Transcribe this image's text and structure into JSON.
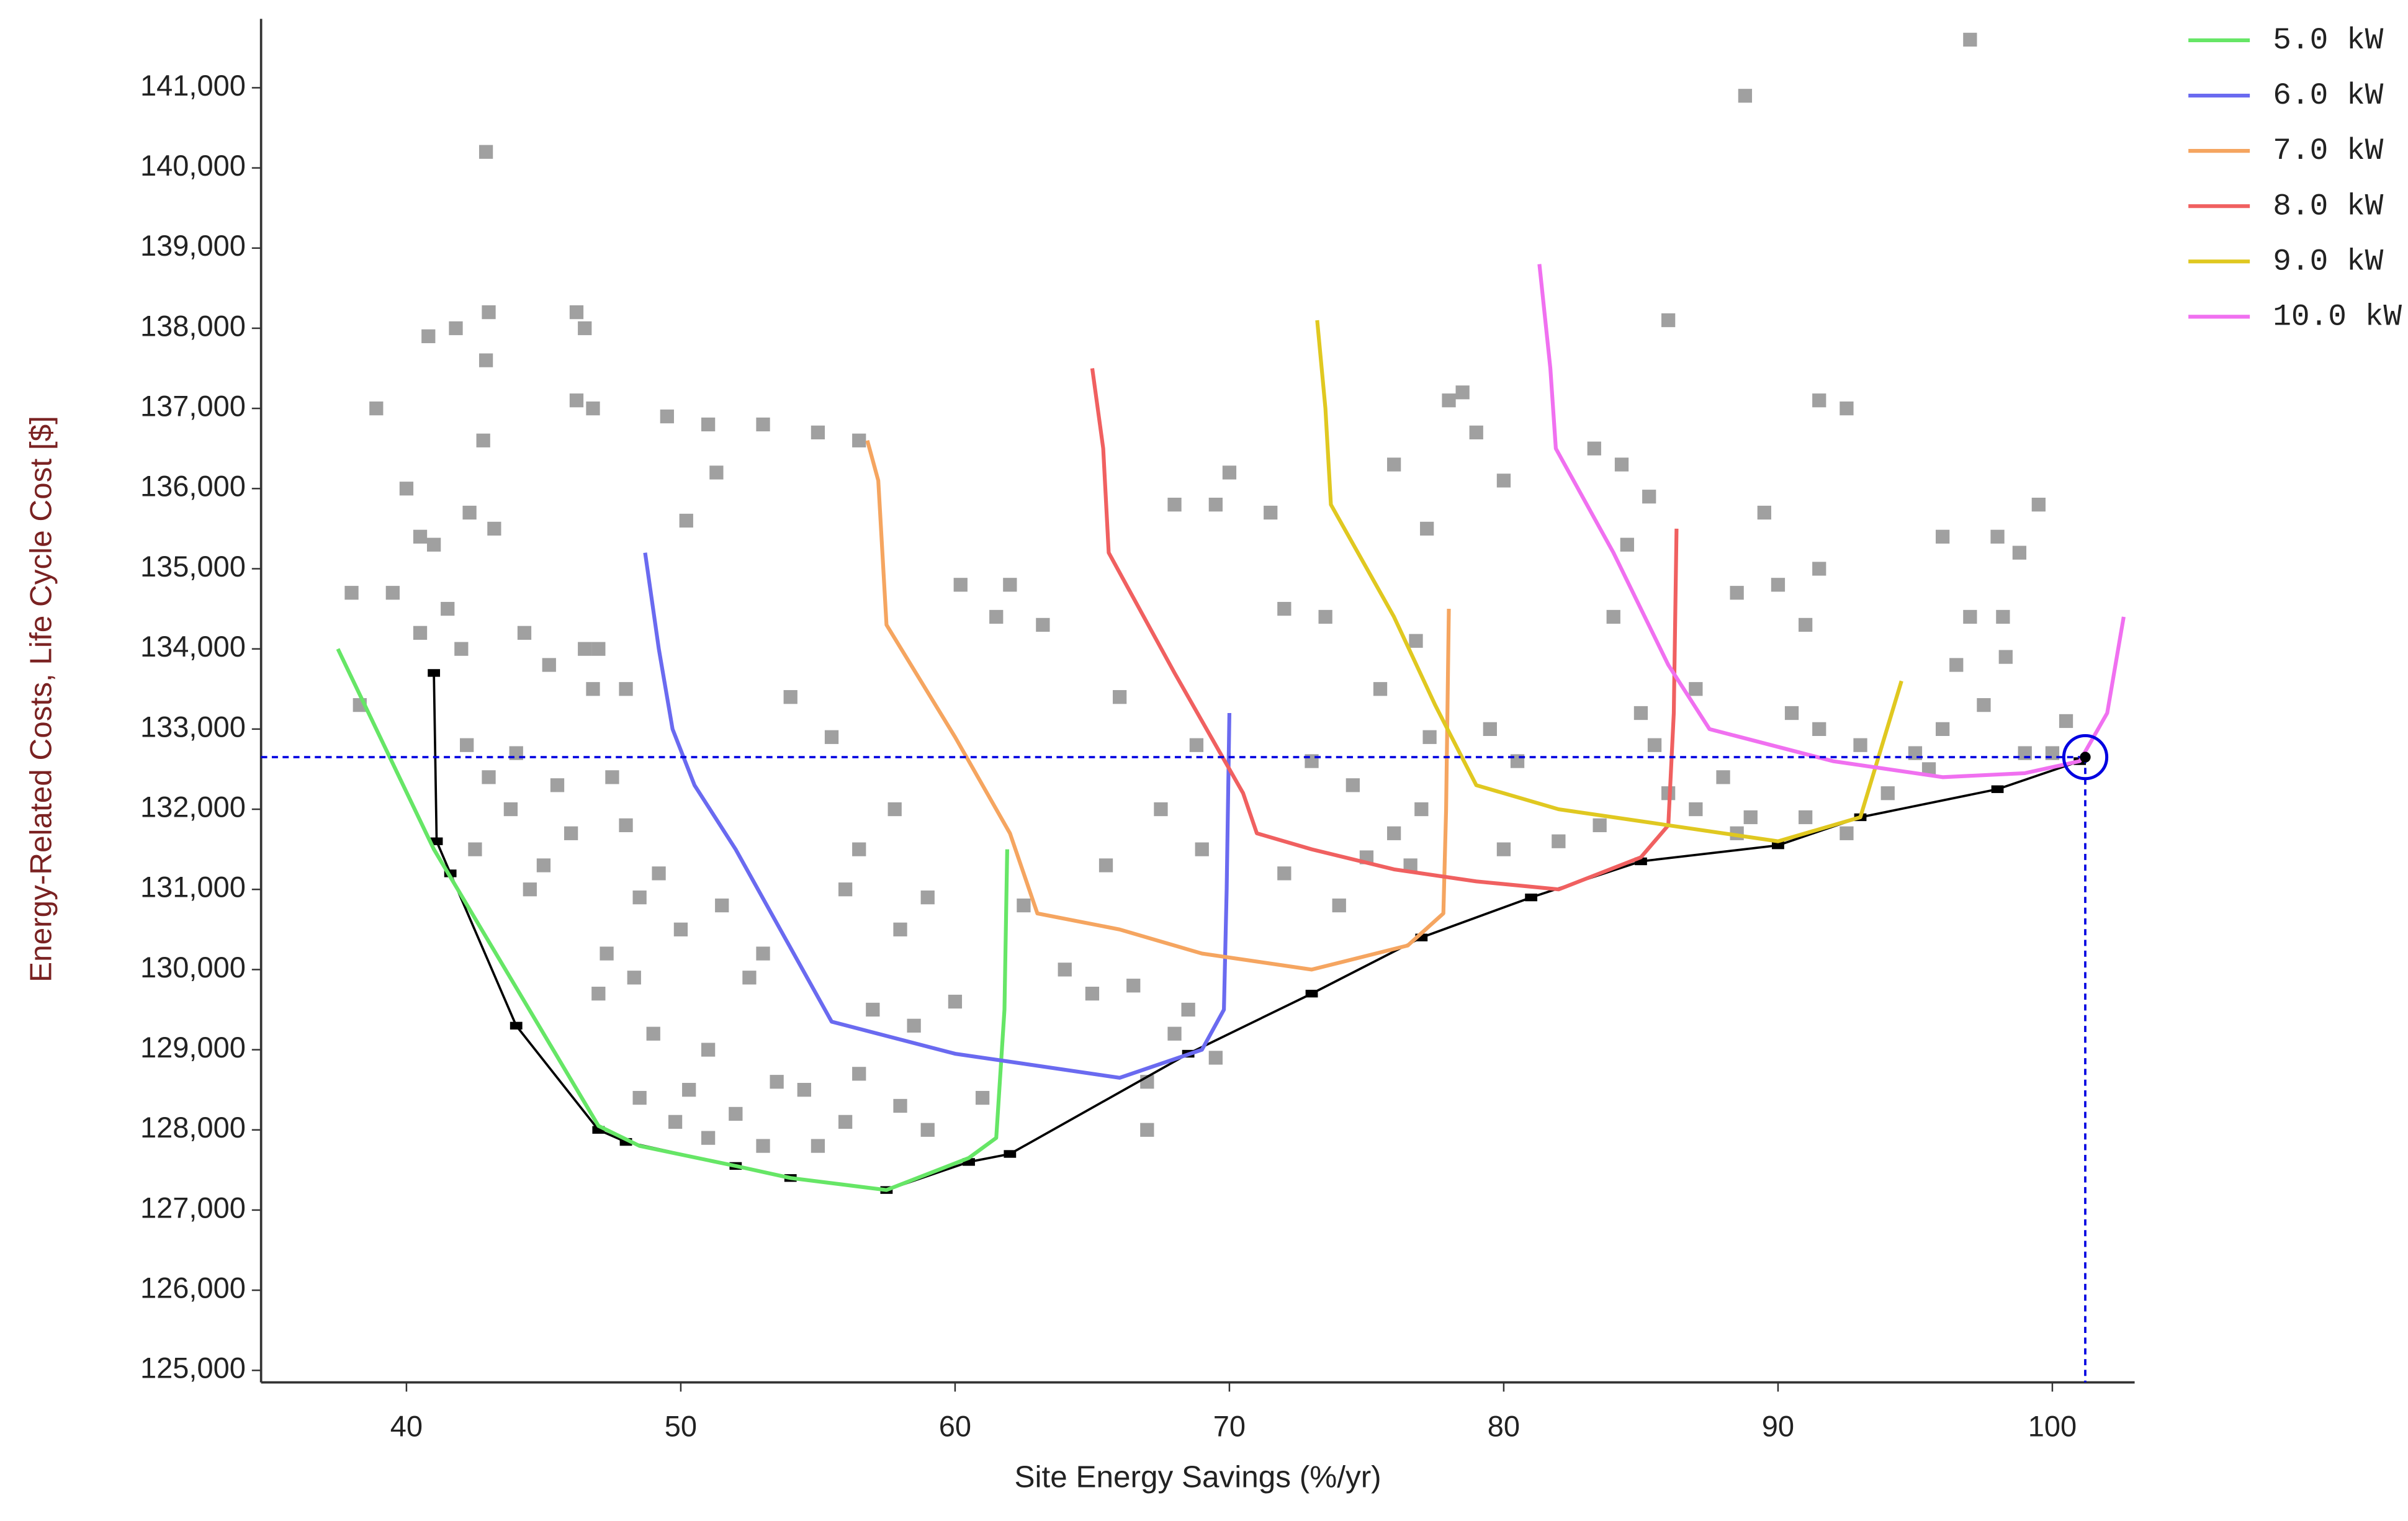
{
  "chart_data": {
    "type": "line",
    "x_label": "Site Energy Savings (%/yr)",
    "y_label": "Energy-Related Costs, Life Cycle Cost [$]",
    "xlim": [
      34.7,
      103
    ],
    "ylim": [
      124850,
      141860
    ],
    "xticks": [
      40,
      50,
      60,
      70,
      80,
      90,
      100
    ],
    "yticks": [
      {
        "value": 125000,
        "label": "125,000"
      },
      {
        "value": 126000,
        "label": "126,000"
      },
      {
        "value": 127000,
        "label": "127,000"
      },
      {
        "value": 128000,
        "label": "128,000"
      },
      {
        "value": 129000,
        "label": "129,000"
      },
      {
        "value": 130000,
        "label": "130,000"
      },
      {
        "value": 131000,
        "label": "131,000"
      },
      {
        "value": 132000,
        "label": "132,000"
      },
      {
        "value": 133000,
        "label": "133,000"
      },
      {
        "value": 134000,
        "label": "134,000"
      },
      {
        "value": 135000,
        "label": "135,000"
      },
      {
        "value": 136000,
        "label": "136,000"
      },
      {
        "value": 137000,
        "label": "137,000"
      },
      {
        "value": 138000,
        "label": "138,000"
      },
      {
        "value": 139000,
        "label": "139,000"
      },
      {
        "value": 140000,
        "label": "140,000"
      },
      {
        "value": 141000,
        "label": "141,000"
      }
    ],
    "legend": "top-right",
    "points": {
      "color": "#a0a0a0",
      "x": [
        38.9,
        40,
        40.5,
        41,
        39.5,
        38,
        38.3,
        40.5,
        41.5,
        42,
        42.2,
        43,
        42.5,
        44,
        44.5,
        43.8,
        45,
        45.5,
        46,
        46.5,
        45.2,
        46.8,
        44.3,
        43.2,
        42.3,
        42.9,
        42.8,
        43,
        40.8,
        41.8,
        42.9,
        46.2,
        46.5,
        46.2,
        46.8,
        49.5,
        51,
        53,
        55,
        56.5,
        50.2,
        51.3,
        47,
        48,
        47.5,
        48,
        48.5,
        49.2,
        47.3,
        48.3,
        47,
        49,
        50,
        51.5,
        52.5,
        53,
        51,
        50.3,
        52,
        53.5,
        48.5,
        49.8,
        51,
        53,
        55,
        56,
        54.5,
        56.5,
        58,
        59,
        57,
        58.5,
        60,
        61,
        56,
        56.5,
        58,
        59,
        54,
        55.5,
        57.8,
        60.2,
        61.5,
        62,
        63.2,
        62.5,
        64,
        65,
        65.5,
        66.5,
        67,
        68,
        67,
        68.5,
        69.5,
        68.8,
        66,
        67.5,
        69,
        70,
        68,
        69.5,
        71.5,
        72,
        73.5,
        73,
        74.5,
        72,
        74,
        75,
        76,
        76.6,
        77,
        77.3,
        76.8,
        75.5,
        76,
        77.2,
        78,
        78.5,
        79,
        80,
        79.5,
        80.5,
        80,
        82,
        83.5,
        84,
        84.5,
        85,
        85.5,
        86,
        87,
        88,
        88.5,
        86,
        84.3,
        85.3,
        83.3,
        88.8,
        91.5,
        92.5,
        89.5,
        90,
        91,
        91.5,
        88.5,
        90.5,
        91.5,
        93,
        95,
        96,
        96.5,
        97,
        97.5,
        96,
        98,
        98.8,
        99.5,
        98.3,
        98.2,
        99,
        100,
        100.5,
        97,
        94,
        95.5,
        92.5,
        91,
        89,
        87
      ],
      "y": [
        137000,
        136000,
        135400,
        135300,
        134700,
        134700,
        133300,
        134200,
        134500,
        134000,
        132800,
        132400,
        131500,
        132700,
        131000,
        132000,
        131300,
        132300,
        131700,
        134000,
        133800,
        133500,
        134200,
        135500,
        135700,
        137600,
        136600,
        138200,
        137900,
        138000,
        140200,
        138200,
        138000,
        137100,
        137000,
        136900,
        136800,
        136800,
        136700,
        136600,
        135600,
        136200,
        134000,
        133500,
        132400,
        131800,
        130900,
        131200,
        130200,
        129900,
        129700,
        129200,
        130500,
        130800,
        129900,
        130200,
        129000,
        128500,
        128200,
        128600,
        128400,
        128100,
        127900,
        127800,
        127800,
        128100,
        128500,
        128700,
        128300,
        128000,
        129500,
        129300,
        129600,
        128400,
        131000,
        131500,
        130500,
        130900,
        133400,
        132900,
        132000,
        134800,
        134400,
        134800,
        134300,
        130800,
        130000,
        129700,
        131300,
        129800,
        128600,
        129200,
        128000,
        129500,
        128900,
        132800,
        133400,
        132000,
        131500,
        136200,
        135800,
        135800,
        135700,
        134500,
        134400,
        132600,
        132300,
        131200,
        130800,
        131400,
        131700,
        131300,
        132000,
        132900,
        134100,
        133500,
        136300,
        135500,
        137100,
        137200,
        136700,
        136100,
        133000,
        132600,
        131500,
        131600,
        131800,
        134400,
        135300,
        133200,
        132800,
        132200,
        133500,
        132400,
        131700,
        138100,
        136300,
        135900,
        136500,
        140900,
        137100,
        137000,
        135700,
        134800,
        134300,
        135000,
        134700,
        133200,
        133000,
        132800,
        132700,
        133000,
        133800,
        134400,
        133300,
        135400,
        135400,
        135200,
        135800,
        133900,
        134400,
        132700,
        132700,
        133100,
        141600,
        132200,
        132500,
        131700,
        131900,
        131900,
        132000
      ]
    },
    "series": [
      {
        "name": "5.0 kW",
        "color": "#66e666",
        "x": [
          37.5,
          41,
          47,
          48.5,
          52,
          54,
          57.5,
          60.5,
          61.5,
          61.8,
          61.9
        ],
        "values": [
          134000,
          131500,
          128050,
          127800,
          127550,
          127400,
          127250,
          127650,
          127900,
          129500,
          131500
        ]
      },
      {
        "name": "6.0 kW",
        "color": "#6a6af0",
        "x": [
          48.7,
          49.2,
          49.7,
          50.5,
          52,
          55.5,
          60,
          66,
          69,
          69.8,
          69.9,
          70
        ],
        "values": [
          135200,
          134000,
          133000,
          132300,
          131500,
          129350,
          128950,
          128650,
          129000,
          129500,
          131000,
          133200
        ]
      },
      {
        "name": "7.0 kW",
        "color": "#f5a560",
        "x": [
          56.8,
          57.2,
          57.5,
          60,
          62,
          63,
          66,
          69,
          73,
          76.5,
          77.8,
          77.9,
          78
        ],
        "values": [
          136600,
          136100,
          134300,
          132900,
          131700,
          130700,
          130500,
          130200,
          130000,
          130300,
          130700,
          132000,
          134500
        ]
      },
      {
        "name": "8.0 kW",
        "color": "#f06060",
        "x": [
          65,
          65.4,
          65.6,
          68,
          70.5,
          71,
          73,
          76,
          79,
          82,
          85,
          86,
          86.2,
          86.3
        ],
        "values": [
          137500,
          136500,
          135200,
          133700,
          132200,
          131700,
          131500,
          131250,
          131100,
          131000,
          131400,
          131800,
          133200,
          135500
        ]
      },
      {
        "name": "9.0 kW",
        "color": "#e0c820",
        "x": [
          73.2,
          73.5,
          73.7,
          76,
          77.5,
          79,
          82,
          86,
          90,
          93,
          94.5
        ],
        "values": [
          138100,
          137000,
          135800,
          134400,
          133300,
          132300,
          132000,
          131800,
          131600,
          131900,
          133600
        ]
      },
      {
        "name": "10.0 kW",
        "color": "#f070f0",
        "x": [
          81.3,
          81.7,
          81.9,
          84,
          86,
          87.5,
          92,
          96,
          99,
          101,
          102,
          102.6
        ],
        "values": [
          138800,
          137500,
          136500,
          135200,
          133800,
          133000,
          132600,
          132400,
          132450,
          132600,
          133200,
          134400
        ]
      }
    ],
    "pareto_front": {
      "color": "#000000",
      "x": [
        41,
        41.1,
        41.6,
        44,
        47,
        48,
        52,
        54,
        57.5,
        60.5,
        62,
        68.5,
        73,
        77,
        81,
        85,
        90,
        93,
        98,
        101
      ],
      "values": [
        133700,
        131600,
        131200,
        129300,
        128000,
        127850,
        127550,
        127400,
        127250,
        127600,
        127700,
        128950,
        129700,
        130400,
        130900,
        131350,
        131550,
        131900,
        132250,
        132600
      ]
    },
    "selected": {
      "color": "#0000e0",
      "x": 101.2,
      "y": 132650
    }
  }
}
